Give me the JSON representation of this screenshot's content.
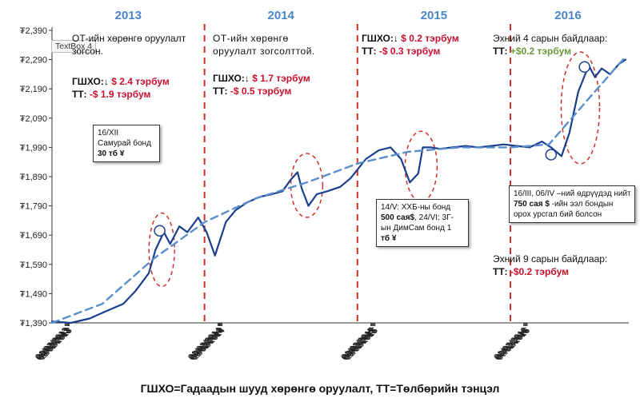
{
  "chart_data": {
    "type": "line",
    "y_unit_prefix": "₮",
    "ylim": [
      1390,
      2390
    ],
    "yticks": [
      "₮2,390",
      "₮2,290",
      "₮2,190",
      "₮2,090",
      "₮1,990",
      "₮1,890",
      "₮1,790",
      "₮1,690",
      "₮1,590",
      "₮1,490",
      "₮1,390"
    ],
    "ytick_values": [
      2390,
      2290,
      2190,
      2090,
      1990,
      1890,
      1790,
      1690,
      1590,
      1490,
      1390
    ],
    "xticks": [
      "01/02/2013",
      "03/02/2013",
      "05/02/2013",
      "07/02/2013",
      "09/02/2013",
      "11/02/2013",
      "01/02/2014",
      "03/02/2014",
      "05/02/2014",
      "07/02/2014",
      "09/02/2014",
      "11/02/2014",
      "01/02/2015",
      "03/02/2015",
      "05/02/2015",
      "07/02/2015",
      "09/02/2015",
      "11/02/2015",
      "01/02/2016",
      "03/02/2016",
      "05/02/2016",
      "07/02/2016",
      "09/02/2016"
    ],
    "years": [
      "2013",
      "2014",
      "2015",
      "2016"
    ],
    "grid": false,
    "series": [
      {
        "kind": "actual",
        "color": "#1a3f8f",
        "x": [
          "2013-01-01",
          "2013-02-15",
          "2013-04-01",
          "2013-05-10",
          "2013-06-20",
          "2013-07-20",
          "2013-08-20",
          "2013-09-05",
          "2013-09-25",
          "2013-10-10",
          "2013-11-01",
          "2013-11-20",
          "2013-12-16",
          "2014-01-05",
          "2014-01-25",
          "2014-02-20",
          "2014-03-15",
          "2014-04-10",
          "2014-05-10",
          "2014-06-10",
          "2014-07-05",
          "2014-07-25",
          "2014-08-10",
          "2014-08-20",
          "2014-09-05",
          "2014-09-25",
          "2014-10-20",
          "2014-11-20",
          "2014-12-15",
          "2015-01-20",
          "2015-02-20",
          "2015-03-20",
          "2015-04-14",
          "2015-05-05",
          "2015-05-25",
          "2015-06-05",
          "2015-06-25",
          "2015-07-15",
          "2015-08-15",
          "2015-09-15",
          "2015-10-15",
          "2015-11-15",
          "2015-12-15",
          "2016-01-15",
          "2016-02-15",
          "2016-03-15",
          "2016-04-06",
          "2016-05-01",
          "2016-05-20",
          "2016-06-10",
          "2016-07-05",
          "2016-07-20",
          "2016-08-05",
          "2016-08-25",
          "2016-09-15",
          "2016-10-01"
        ],
        "y": [
          1395,
          1390,
          1405,
          1430,
          1455,
          1500,
          1560,
          1640,
          1700,
          1660,
          1720,
          1700,
          1750,
          1700,
          1620,
          1735,
          1775,
          1800,
          1820,
          1830,
          1840,
          1880,
          1905,
          1850,
          1790,
          1830,
          1840,
          1855,
          1885,
          1950,
          1980,
          1990,
          1950,
          1870,
          1900,
          1990,
          1990,
          1985,
          1990,
          1995,
          1990,
          1995,
          2000,
          1995,
          1990,
          2010,
          1990,
          1960,
          2040,
          2180,
          2270,
          2230,
          2260,
          2240,
          2275,
          2290
        ]
      },
      {
        "kind": "trend",
        "color": "#5b8fca",
        "dashed": true,
        "x": [
          "2013-01-01",
          "2013-05-01",
          "2013-09-01",
          "2014-01-01",
          "2014-05-01",
          "2014-09-01",
          "2015-01-01",
          "2015-05-01",
          "2015-09-01",
          "2016-01-01",
          "2016-04-01",
          "2016-07-01",
          "2016-10-01"
        ],
        "y": [
          1390,
          1455,
          1610,
          1735,
          1815,
          1870,
          1935,
          1975,
          1990,
          1990,
          2000,
          2150,
          2300
        ]
      }
    ],
    "period_dividers": [
      "2013-12-31",
      "2014-12-31",
      "2015-12-31"
    ],
    "markers": [
      {
        "label": "16/XII",
        "x": "2013-09-15",
        "y": 1705
      },
      {
        "label": "2016",
        "x": "2016-04-06",
        "y": 1965
      },
      {
        "label": "2016b",
        "x": "2016-06-25",
        "y": 2265
      }
    ],
    "highlight_ellipses": [
      {
        "x": "2013-09-20",
        "y": 1640
      },
      {
        "x": "2014-09-01",
        "y": 1860
      },
      {
        "x": "2015-06-01",
        "y": 1925
      },
      {
        "x": "2016-06-15",
        "y": 2125
      }
    ]
  },
  "annotations": {
    "textbox_label": "TextBox 4",
    "a2013": {
      "title1": "ОТ-ийн хөрөнгө оруулалт",
      "title2": "зогсон.",
      "fdi_label": "ГШХО:",
      "arrow": "↓",
      "fdi_value": "$ 2.4 тэрбум",
      "bop_label": "ТТ: ",
      "bop_value": "-$ 1.9 тэрбум"
    },
    "a2014": {
      "title1": "ОТ-ийн хөрөнгө",
      "title2": "оруулалт зогсолттой.",
      "fdi_label": "ГШХО:",
      "arrow": "↓",
      "fdi_value": "$ 1.7 тэрбум",
      "bop_label": "ТТ: ",
      "bop_value": "-$ 0.5 тэрбум"
    },
    "a2015": {
      "fdi_label": "ГШХО:",
      "arrow": "↓",
      "fdi_value": "$ 0.2 тэрбум",
      "bop_label": "ТТ: ",
      "bop_value": "-$ 0.3 тэрбум"
    },
    "a2016": {
      "title": "Эхний 4 сарын байдлаар:",
      "bop_label": "ТТ: ",
      "bop_value": "+$0.2 тэрбум"
    },
    "a2016b": {
      "title": "Эхний 9 сарын байдлаар:",
      "bop_label": "ТТ: ",
      "bop_value": "-$0.2 тэрбум"
    },
    "box_samurai": {
      "line1": "16/XII",
      "line2": "Самурай бонд",
      "line3": "30 тб ¥"
    },
    "box_bonds": {
      "line1": "14/V: ХХБ-ны бонд",
      "line2a": "500 сая$",
      "line2b": ", 24/VI: 3Г-",
      "line3": "ын ДимСам бонд 1",
      "line4": "тб ¥"
    },
    "box_2016": {
      "line1": "16/III, 06/IV –ний өдрүүдэд нийт",
      "line2a": "750 сая $",
      "line2b": " -ийн ээл бондын",
      "line3": "орох урсгал бий болсон"
    }
  },
  "footer": "ГШХО=Гадаадын шууд хөрөнгө оруулалт, ТТ=Төлбөрийн тэнцэл"
}
